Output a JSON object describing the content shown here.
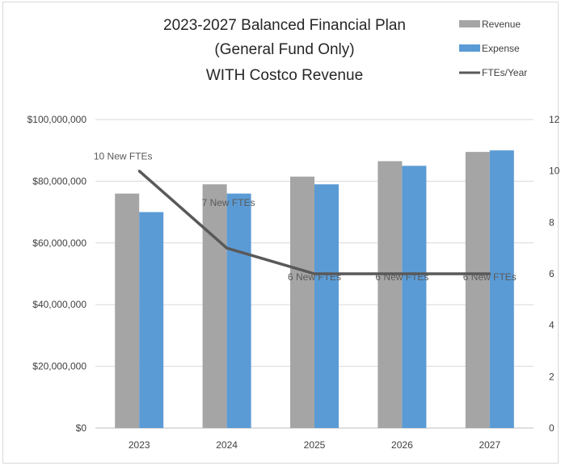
{
  "chart_data": {
    "type": "bar",
    "title_lines": [
      "2023-2027 Balanced Financial Plan",
      "(General Fund Only)",
      "WITH Costco Revenue"
    ],
    "categories": [
      "2023",
      "2024",
      "2025",
      "2026",
      "2027"
    ],
    "series": [
      {
        "name": "Revenue",
        "type": "bar",
        "axis": "left",
        "color": "#a5a5a5",
        "values": [
          76000000,
          79000000,
          81500000,
          86500000,
          89500000
        ]
      },
      {
        "name": "Expense",
        "type": "bar",
        "axis": "left",
        "color": "#5b9bd5",
        "values": [
          70000000,
          76000000,
          79000000,
          85000000,
          90000000
        ]
      },
      {
        "name": "FTEs/Year",
        "type": "line",
        "axis": "right",
        "color": "#595959",
        "values": [
          10,
          7,
          6,
          6,
          6
        ]
      }
    ],
    "data_labels": [
      "10 New FTEs",
      "7 New FTEs",
      "6 New FTEs",
      "6 New FTEs",
      "6 New FTEs"
    ],
    "y_left": {
      "ylim": [
        0,
        100000000
      ],
      "ticks": [
        "$0",
        "$20,000,000",
        "$40,000,000",
        "$60,000,000",
        "$80,000,000",
        "$100,000,000"
      ]
    },
    "y_right": {
      "ylim": [
        0,
        12
      ],
      "ticks": [
        "0",
        "2",
        "4",
        "6",
        "8",
        "10",
        "12"
      ]
    },
    "grid": true,
    "legend_position": "top-right"
  }
}
